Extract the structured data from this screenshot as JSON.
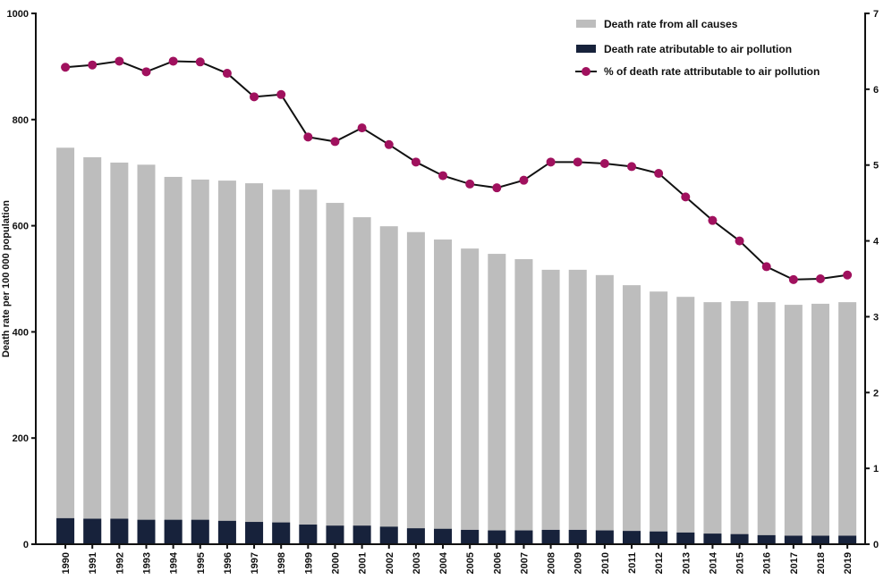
{
  "chart_data": {
    "type": "bar",
    "title": "",
    "xlabel": "",
    "ylabel": "Death rate per 100 000 population",
    "ylim": [
      0,
      1000
    ],
    "y2lim": [
      0,
      7
    ],
    "yticks": [
      "0",
      "200",
      "400",
      "600",
      "800",
      "1000"
    ],
    "y2ticks": [
      "0",
      "1",
      "2",
      "3",
      "4",
      "5",
      "6",
      "7"
    ],
    "legend_position": "top-right",
    "categories": [
      "1990",
      "1991",
      "1992",
      "1993",
      "1994",
      "1995",
      "1996",
      "1997",
      "1998",
      "1999",
      "2000",
      "2001",
      "2002",
      "2003",
      "2004",
      "2005",
      "2006",
      "2007",
      "2008",
      "2009",
      "2010",
      "2011",
      "2012",
      "2013",
      "2014",
      "2015",
      "2016",
      "2017",
      "2018",
      "2019"
    ],
    "series": [
      {
        "name": "Death rate from all causes",
        "type": "bar",
        "axis": "left",
        "color": "#bdbdbd",
        "values": [
          747,
          729,
          719,
          715,
          692,
          687,
          685,
          680,
          668,
          668,
          643,
          616,
          599,
          588,
          574,
          557,
          547,
          537,
          517,
          517,
          507,
          488,
          476,
          466,
          456,
          458,
          456,
          451,
          453,
          456
        ]
      },
      {
        "name": "Death rate atributable to air pollution",
        "type": "bar",
        "axis": "left",
        "color": "#17223b",
        "values": [
          49,
          48,
          48,
          46,
          46,
          46,
          44,
          42,
          41,
          37,
          35,
          35,
          33,
          30,
          29,
          27,
          26,
          26,
          27,
          27,
          26,
          25,
          24,
          22,
          20,
          19,
          17,
          16,
          16,
          16
        ]
      },
      {
        "name": "% of death rate attributable to air pollution",
        "type": "line",
        "axis": "right",
        "color": "#a0115e",
        "values": [
          6.29,
          6.32,
          6.37,
          6.23,
          6.37,
          6.36,
          6.21,
          5.9,
          5.93,
          5.37,
          5.31,
          5.49,
          5.27,
          5.04,
          4.86,
          4.75,
          4.7,
          4.8,
          5.04,
          5.04,
          5.02,
          4.98,
          4.89,
          4.58,
          4.27,
          4.0,
          3.66,
          3.49,
          3.5,
          3.55
        ]
      }
    ]
  }
}
